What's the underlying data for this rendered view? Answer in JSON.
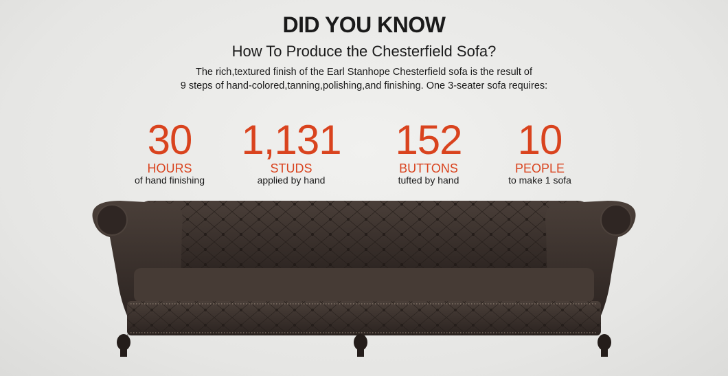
{
  "header": {
    "title": "DID YOU KNOW",
    "subtitle": "How To Produce the Chesterfield Sofa?",
    "description": [
      "The rich,textured finish of the Earl Stanhope Chesterfield sofa is the result of",
      "9 steps of hand-colored,tanning,polishing,and finishing. One 3-seater sofa requires:"
    ]
  },
  "stats": [
    {
      "number": "30",
      "unit": "HOURS",
      "caption": "of hand finishing"
    },
    {
      "number": "1,131",
      "unit": "STUDS",
      "caption": "applied by hand"
    },
    {
      "number": "152",
      "unit": "BUTTONS",
      "caption": "tufted by hand"
    },
    {
      "number": "10",
      "unit": "PEOPLE",
      "caption": "to make 1 sofa"
    }
  ],
  "colors": {
    "accent": "#d9431e",
    "background": "#e9e9e7",
    "leather": "#3a302b"
  }
}
